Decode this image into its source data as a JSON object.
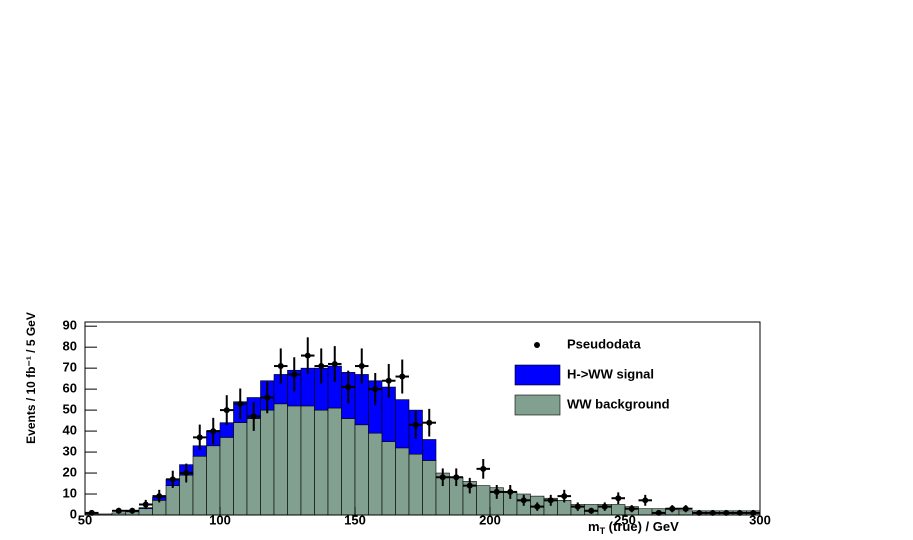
{
  "chart_data": {
    "type": "histogram",
    "ylabel": "Events / 10 fb⁻¹ / 5 GeV",
    "xlabel": {
      "main": "m",
      "sub": "T",
      "rest": " (true) / GeV"
    },
    "xlim": [
      50,
      300
    ],
    "ylim": [
      0,
      92
    ],
    "xticks": [
      50,
      100,
      150,
      200,
      250,
      300
    ],
    "yticks": [
      0,
      10,
      20,
      30,
      40,
      50,
      60,
      70,
      80,
      90
    ],
    "legend": "top-right",
    "bins": [
      50,
      55,
      60,
      65,
      70,
      75,
      80,
      85,
      90,
      95,
      100,
      105,
      110,
      115,
      120,
      125,
      130,
      135,
      140,
      145,
      150,
      155,
      160,
      165,
      170,
      175,
      180,
      185,
      190,
      195,
      200,
      205,
      210,
      215,
      220,
      225,
      230,
      235,
      240,
      245,
      250,
      255,
      260,
      265,
      270,
      275,
      280,
      285,
      290,
      295,
      300
    ],
    "series": [
      {
        "name": "WW background",
        "color": "#82a08f",
        "values": [
          0.5,
          0.5,
          1,
          1.5,
          3,
          7,
          14,
          19,
          28,
          33,
          37,
          44,
          46,
          50,
          53,
          52,
          52,
          50,
          51,
          46,
          43,
          39,
          35,
          32,
          29,
          26,
          20,
          18,
          16,
          14,
          13,
          11,
          10,
          9,
          8,
          7,
          5,
          5,
          5,
          5,
          4,
          3,
          3,
          3,
          2,
          2,
          2,
          2,
          2,
          2
        ]
      },
      {
        "name": "H->WW signal",
        "color": "#0000ff",
        "values": [
          0,
          0,
          0,
          0,
          0.5,
          1.5,
          3,
          5,
          5,
          7,
          7,
          10,
          10,
          14,
          14,
          17,
          18,
          20,
          20,
          22,
          24,
          25,
          26,
          23,
          21,
          10,
          0,
          0,
          0,
          0,
          0,
          0,
          0,
          0,
          0,
          0,
          0,
          0,
          0,
          0,
          0,
          0,
          0,
          0,
          0,
          0,
          0,
          0,
          0,
          0
        ]
      }
    ],
    "pseudodata": {
      "name": "Pseudodata",
      "color": "#000000",
      "x": [
        52.5,
        62.5,
        67.5,
        72.5,
        77.5,
        82.5,
        87.5,
        92.5,
        97.5,
        102.5,
        107.5,
        112.5,
        117.5,
        122.5,
        127.5,
        132.5,
        137.5,
        142.5,
        147.5,
        152.5,
        157.5,
        162.5,
        167.5,
        172.5,
        177.5,
        182.5,
        187.5,
        192.5,
        197.5,
        202.5,
        207.5,
        212.5,
        217.5,
        222.5,
        227.5,
        232.5,
        237.5,
        242.5,
        247.5,
        252.5,
        257.5,
        262.5,
        267.5,
        272.5,
        277.5,
        282.5,
        287.5,
        292.5,
        297.5
      ],
      "values": [
        1,
        2,
        2,
        5,
        9,
        17,
        20,
        37,
        40,
        50,
        53,
        47,
        56,
        71,
        67,
        76,
        71,
        72,
        61,
        71,
        60,
        64,
        66,
        43,
        44,
        18,
        18,
        14,
        22,
        11,
        11,
        7,
        4,
        7,
        9,
        4,
        2,
        4,
        8,
        3,
        7,
        1,
        3,
        3,
        1,
        1,
        1,
        1,
        1
      ],
      "errors": [
        1,
        1.4,
        1.4,
        2.2,
        3,
        4.1,
        4.5,
        6.1,
        6.3,
        7.1,
        7.3,
        6.9,
        7.5,
        8.4,
        8.2,
        8.7,
        8.4,
        8.5,
        7.8,
        8.4,
        7.7,
        8,
        8.1,
        6.6,
        6.6,
        4.2,
        4.2,
        3.7,
        4.7,
        3.3,
        3.3,
        2.6,
        2,
        2.6,
        3,
        2,
        1.4,
        2,
        2.8,
        1.7,
        2.6,
        1,
        1.7,
        1.7,
        1,
        1,
        1,
        1,
        1
      ]
    }
  }
}
